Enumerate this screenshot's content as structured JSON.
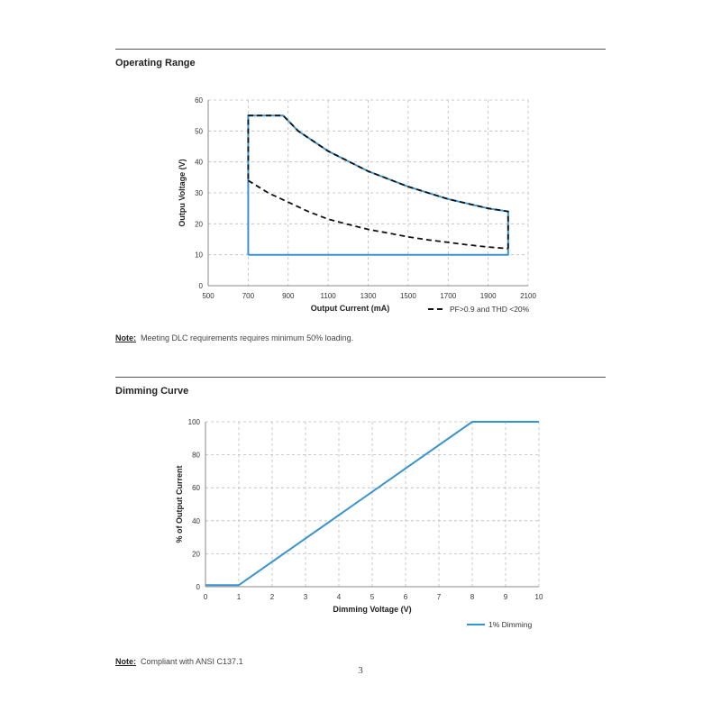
{
  "sections": [
    {
      "title": "Operating Range",
      "note_label": "Note:",
      "note_text": "Meeting DLC requirements requires minimum 50% loading."
    },
    {
      "title": "Dimming Curve",
      "note_label": "Note:",
      "note_text": "Compliant with ANSI C137.1"
    }
  ],
  "page_number": "3",
  "colors": {
    "series_blue": "#3a93d1",
    "dashed_black": "#111111",
    "grid": "#bbbbbb"
  },
  "chart_data": [
    {
      "type": "line",
      "xlabel": "Output Current (mA)",
      "ylabel": "Outpu Voltage (V)",
      "xlim": [
        500,
        2100
      ],
      "ylim": [
        0,
        60
      ],
      "xticks": [
        "500",
        "700",
        "900",
        "1100",
        "1300",
        "1500",
        "1700",
        "1900",
        "2100"
      ],
      "yticks": [
        "0",
        "10",
        "20",
        "30",
        "40",
        "50",
        "60"
      ],
      "grid": true,
      "legend": "bottom-right",
      "series": [
        {
          "name": "",
          "style": "solid-blue",
          "points": [
            [
              700,
              10
            ],
            [
              700,
              55
            ],
            [
              875,
              55
            ],
            [
              950,
              50
            ],
            [
              1100,
              43.5
            ],
            [
              1300,
              37
            ],
            [
              1500,
              32
            ],
            [
              1700,
              28
            ],
            [
              1900,
              25
            ],
            [
              2000,
              24
            ],
            [
              2000,
              10
            ],
            [
              700,
              10
            ]
          ]
        },
        {
          "name": "",
          "style": "dashed-black",
          "points": [
            [
              2000,
              12
            ],
            [
              2000,
              24
            ],
            [
              1900,
              25
            ],
            [
              1700,
              28
            ],
            [
              1500,
              32
            ],
            [
              1300,
              37
            ],
            [
              1100,
              43.5
            ],
            [
              950,
              50
            ],
            [
              875,
              55
            ],
            [
              700,
              55
            ],
            [
              700,
              34
            ]
          ]
        },
        {
          "name": "PF>0.9 and THD <20%",
          "style": "dashed-black",
          "points": [
            [
              700,
              34
            ],
            [
              800,
              30
            ],
            [
              900,
              27
            ],
            [
              1000,
              24
            ],
            [
              1100,
              21.5
            ],
            [
              1200,
              19.8
            ],
            [
              1300,
              18.2
            ],
            [
              1400,
              17
            ],
            [
              1500,
              15.8
            ],
            [
              1600,
              14.8
            ],
            [
              1700,
              14
            ],
            [
              1800,
              13.2
            ],
            [
              1900,
              12.5
            ],
            [
              2000,
              12
            ]
          ]
        }
      ]
    },
    {
      "type": "line",
      "xlabel": "Dimming Voltage (V)",
      "ylabel": "% of Output Current",
      "xlim": [
        0,
        10
      ],
      "ylim": [
        0,
        100
      ],
      "xticks": [
        "0",
        "1",
        "2",
        "3",
        "4",
        "5",
        "6",
        "7",
        "8",
        "9",
        "10"
      ],
      "yticks": [
        "0",
        "20",
        "40",
        "60",
        "80",
        "100"
      ],
      "grid": true,
      "legend": "bottom-right",
      "series": [
        {
          "name": "1% Dimming",
          "style": "solid-blue",
          "points": [
            [
              0,
              1
            ],
            [
              1,
              1
            ],
            [
              8,
              100
            ],
            [
              10,
              100
            ]
          ]
        }
      ]
    }
  ]
}
